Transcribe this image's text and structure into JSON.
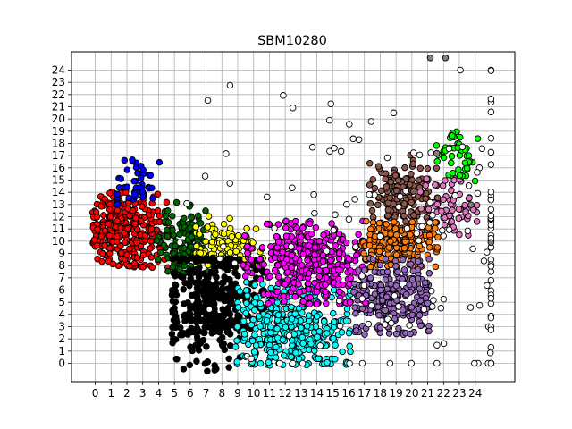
{
  "chart_data": {
    "type": "scatter",
    "title": "SBM10280",
    "xlabel": "",
    "ylabel": "",
    "xlim": [
      -1.5,
      26.5
    ],
    "ylim": [
      -1.5,
      25.5
    ],
    "xticks": [
      0,
      1,
      2,
      3,
      4,
      5,
      6,
      7,
      8,
      9,
      10,
      11,
      12,
      13,
      14,
      15,
      16,
      17,
      18,
      19,
      20,
      21,
      22,
      23,
      24
    ],
    "yticks": [
      0,
      1,
      2,
      3,
      4,
      5,
      6,
      7,
      8,
      9,
      10,
      11,
      12,
      13,
      14,
      15,
      16,
      17,
      18,
      19,
      20,
      21,
      22,
      23,
      24
    ],
    "grid": true,
    "marker": "circle with black edge",
    "clusters": [
      {
        "color": "#ff0000",
        "x_range": [
          0,
          4.5
        ],
        "y_range": [
          8,
          14
        ],
        "center": [
          2,
          11
        ],
        "approx_count": 320
      },
      {
        "color": "#0000ff",
        "x_range": [
          1.5,
          3.8
        ],
        "y_range": [
          13,
          16.5
        ],
        "center": [
          2.6,
          15
        ],
        "approx_count": 45
      },
      {
        "color": "#006400",
        "x_range": [
          4,
          7
        ],
        "y_range": [
          7.5,
          12.8
        ],
        "center": [
          5.6,
          9.8
        ],
        "approx_count": 140
      },
      {
        "color": "#ffff00",
        "x_range": [
          6.6,
          10.5
        ],
        "y_range": [
          8,
          12
        ],
        "center": [
          8.2,
          9.6
        ],
        "approx_count": 110
      },
      {
        "color": "#000000",
        "x_range": [
          5,
          10.5
        ],
        "y_range": [
          -0.3,
          8.5
        ],
        "center": [
          7.5,
          5
        ],
        "approx_count": 420
      },
      {
        "color": "#00ffff",
        "x_range": [
          9,
          16
        ],
        "y_range": [
          0,
          6.5
        ],
        "center": [
          12.5,
          3.2
        ],
        "approx_count": 380
      },
      {
        "color": "#ff00ff",
        "x_range": [
          9.5,
          17
        ],
        "y_range": [
          5,
          11.5
        ],
        "center": [
          13.5,
          8.3
        ],
        "approx_count": 400
      },
      {
        "color": "#8c564b",
        "x_range": [
          17.5,
          21.5
        ],
        "y_range": [
          11,
          16.8
        ],
        "center": [
          19.5,
          13.5
        ],
        "approx_count": 200
      },
      {
        "color": "#ff7f0e",
        "x_range": [
          17,
          21.5
        ],
        "y_range": [
          8,
          11.5
        ],
        "center": [
          19.3,
          9.8
        ],
        "approx_count": 220
      },
      {
        "color": "#9467bd",
        "x_range": [
          16.5,
          21
        ],
        "y_range": [
          2.5,
          8.5
        ],
        "center": [
          18.8,
          5.5
        ],
        "approx_count": 260
      },
      {
        "color": "#e377c2",
        "x_range": [
          20.5,
          24
        ],
        "y_range": [
          10,
          14.8
        ],
        "center": [
          22.5,
          12.5
        ],
        "approx_count": 60
      },
      {
        "color": "#00ff00",
        "x_range": [
          21,
          24
        ],
        "y_range": [
          15,
          19
        ],
        "center": [
          22.8,
          17
        ],
        "approx_count": 45
      },
      {
        "color": "#ffffff",
        "x_range": [
          0,
          25
        ],
        "y_range": [
          0,
          24
        ],
        "center": [
          21,
          10
        ],
        "approx_count": 160
      },
      {
        "color": "#808080",
        "x_range": [
          19,
          25
        ],
        "y_range": [
          3,
          25
        ],
        "center": [
          22.5,
          16
        ],
        "approx_count": 5
      }
    ]
  }
}
